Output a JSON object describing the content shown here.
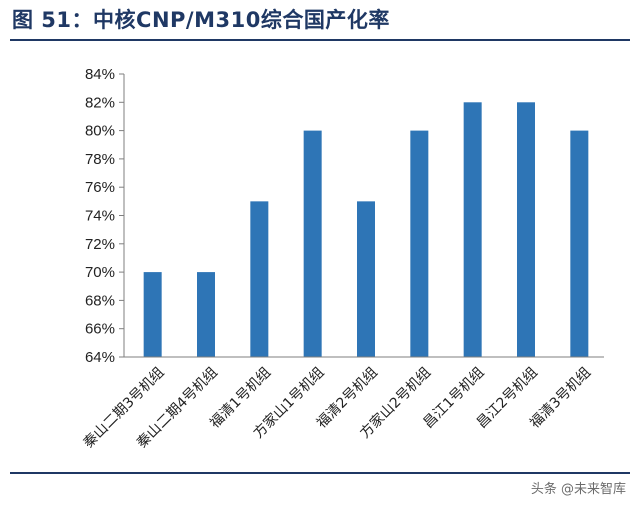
{
  "page": {
    "watermark": "头条 @未来智库"
  },
  "colors": {
    "bar": "#2e75b6",
    "title": "#1f3864",
    "rule": "#1f3864",
    "axis": "#7f7f7f"
  },
  "chart_data": {
    "type": "bar",
    "title": "图 51：中核CNP/M310综合国产化率",
    "xlabel": "",
    "ylabel": "",
    "categories": [
      "秦山二期3号机组",
      "秦山二期4号机组",
      "福清1号机组",
      "方家山1号机组",
      "福清2号机组",
      "方家山2号机组",
      "昌江1号机组",
      "昌江2号机组",
      "福清3号机组"
    ],
    "series": [
      {
        "values": [
          70,
          70,
          75,
          80,
          75,
          80,
          82,
          82,
          80
        ]
      }
    ],
    "ylim": [
      64,
      84
    ],
    "yticks": [
      64,
      66,
      68,
      70,
      72,
      74,
      76,
      78,
      80,
      82,
      84
    ],
    "ytick_format": "percent",
    "grid": false,
    "legend": "none"
  }
}
